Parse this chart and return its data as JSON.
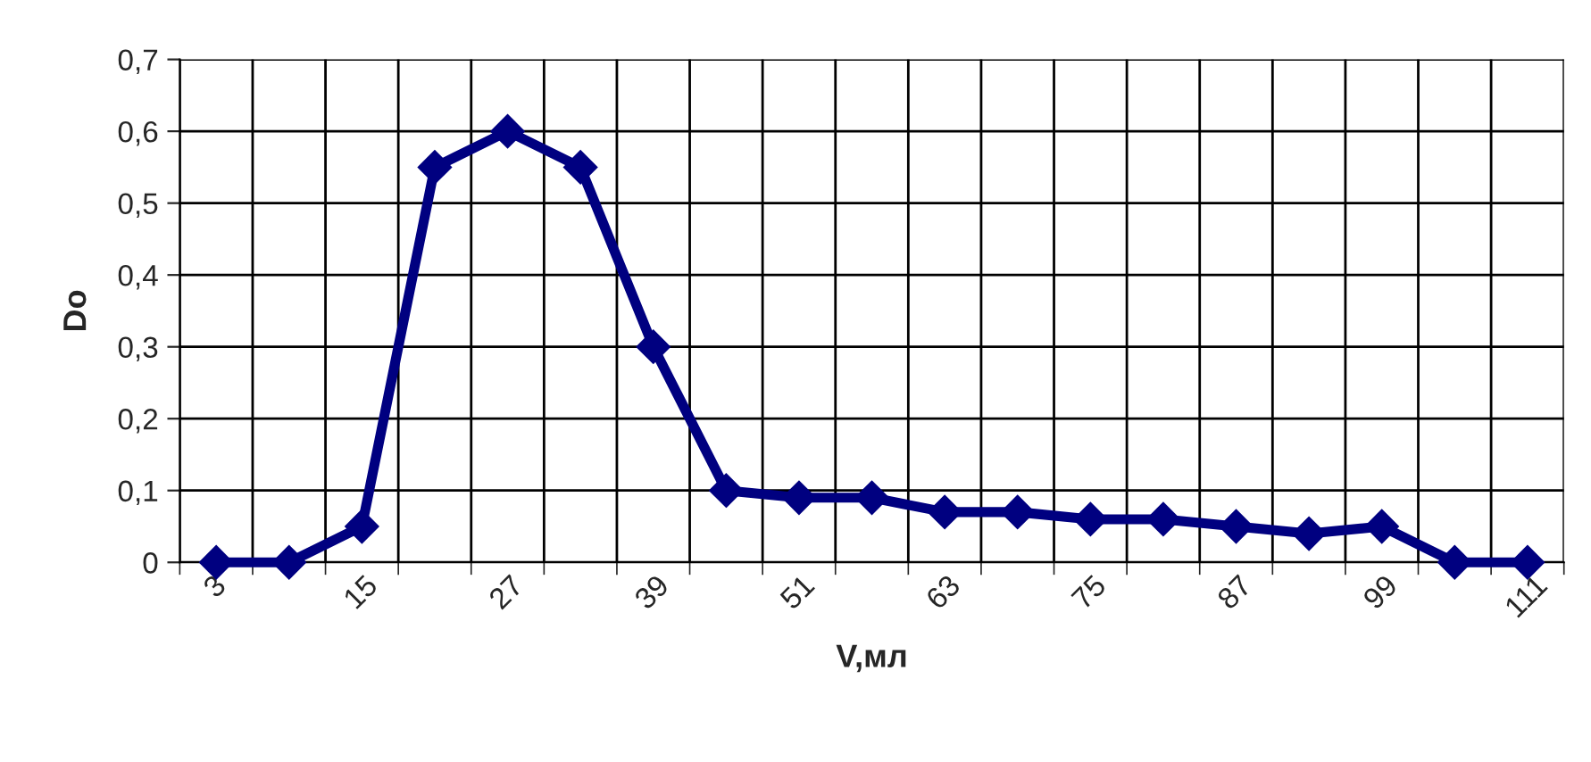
{
  "chart_data": {
    "type": "line",
    "categories": [
      "3",
      null,
      "15",
      null,
      "27",
      null,
      "39",
      null,
      "51",
      null,
      "63",
      null,
      "75",
      null,
      "87",
      null,
      "99",
      null,
      "111"
    ],
    "series": [
      {
        "color": "#000080",
        "values": [
          0,
          0,
          0.05,
          0.55,
          0.6,
          0.55,
          0.3,
          0.1,
          0.09,
          0.09,
          0.07,
          0.07,
          0.06,
          0.06,
          0.05,
          0.04,
          0.05,
          0,
          0
        ]
      }
    ],
    "xlabel": "V,мл",
    "ylabel": "Do",
    "ylim": [
      0,
      0.7
    ],
    "yticks": [
      0,
      {
        "value": 0.1,
        "label": "0,1"
      },
      {
        "value": 0.2,
        "label": "0,2"
      },
      {
        "value": 0.3,
        "label": "0,3"
      },
      {
        "value": 0.4,
        "label": "0,4"
      },
      {
        "value": 0.5,
        "label": "0,5"
      },
      {
        "value": 0.6,
        "label": "0,6"
      },
      {
        "value": 0.7,
        "label": "0,7"
      }
    ],
    "grid": true,
    "marker": "diamond",
    "line_style": "solid"
  }
}
